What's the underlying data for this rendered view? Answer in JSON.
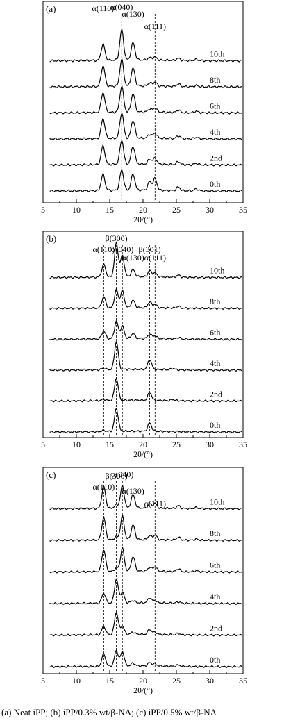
{
  "caption": "(a)   Neat   iPP; (b) iPP/0.3% wt/β-NA; (c) iPP/0.5% wt/β-NA",
  "chart_data": [
    {
      "type": "line",
      "panel_label": "(a)",
      "xlabel": "2θ/(°)",
      "xlim": [
        5,
        35
      ],
      "x_ticks": [
        5,
        10,
        15,
        20,
        25,
        30,
        35
      ],
      "series": [
        {
          "name": "0th",
          "peaks": [
            [
              14.0,
              0.52
            ],
            [
              16.8,
              0.66
            ],
            [
              18.5,
              0.52
            ],
            [
              21.0,
              0.28
            ],
            [
              21.8,
              0.38
            ],
            [
              25.3,
              0.12
            ],
            [
              28.0,
              0.07
            ]
          ]
        },
        {
          "name": "2nd",
          "peaks": [
            [
              14.0,
              0.6
            ],
            [
              16.8,
              0.78
            ],
            [
              18.5,
              0.58
            ],
            [
              21.0,
              0.16
            ],
            [
              21.8,
              0.2
            ],
            [
              25.3,
              0.1
            ],
            [
              28.0,
              0.05
            ]
          ]
        },
        {
          "name": "4th",
          "peaks": [
            [
              14.0,
              0.64
            ],
            [
              16.8,
              0.82
            ],
            [
              18.5,
              0.58
            ],
            [
              21.0,
              0.12
            ],
            [
              21.8,
              0.16
            ],
            [
              25.3,
              0.09
            ],
            [
              28.0,
              0.05
            ]
          ]
        },
        {
          "name": "6th",
          "peaks": [
            [
              14.0,
              0.64
            ],
            [
              16.8,
              0.84
            ],
            [
              18.5,
              0.6
            ],
            [
              21.0,
              0.1
            ],
            [
              21.8,
              0.14
            ],
            [
              25.3,
              0.08
            ],
            [
              28.0,
              0.05
            ]
          ]
        },
        {
          "name": "8th",
          "peaks": [
            [
              14.0,
              0.66
            ],
            [
              16.8,
              0.86
            ],
            [
              18.5,
              0.58
            ],
            [
              21.0,
              0.1
            ],
            [
              21.8,
              0.13
            ],
            [
              25.3,
              0.08
            ],
            [
              28.0,
              0.04
            ]
          ]
        },
        {
          "name": "10th",
          "peaks": [
            [
              14.0,
              0.52
            ],
            [
              16.8,
              0.98
            ],
            [
              18.5,
              0.56
            ],
            [
              21.0,
              0.08
            ],
            [
              21.8,
              0.1
            ],
            [
              25.3,
              0.07
            ],
            [
              28.0,
              0.04
            ]
          ]
        }
      ],
      "reference_lines": [
        {
          "label": "α(110)",
          "x": 14.0
        },
        {
          "label": "α(040)",
          "x": 16.8
        },
        {
          "label": "α(130)",
          "x": 18.5
        },
        {
          "label": "α(111)",
          "x": 21.8
        }
      ]
    },
    {
      "type": "line",
      "panel_label": "(b)",
      "xlabel": "2θ/(°)",
      "xlim": [
        5,
        35
      ],
      "x_ticks": [
        5,
        10,
        15,
        20,
        25,
        30,
        35
      ],
      "series": [
        {
          "name": "0th",
          "peaks": [
            [
              16.0,
              0.82
            ],
            [
              21.0,
              0.3
            ],
            [
              14.1,
              0.04
            ]
          ]
        },
        {
          "name": "2nd",
          "peaks": [
            [
              16.0,
              0.8
            ],
            [
              21.0,
              0.28
            ],
            [
              14.1,
              0.05
            ],
            [
              24.5,
              0.04
            ]
          ]
        },
        {
          "name": "4th",
          "peaks": [
            [
              16.0,
              1.0
            ],
            [
              21.0,
              0.36
            ],
            [
              14.1,
              0.06
            ],
            [
              24.5,
              0.05
            ]
          ]
        },
        {
          "name": "6th",
          "peaks": [
            [
              14.1,
              0.28
            ],
            [
              16.0,
              0.62
            ],
            [
              16.9,
              0.44
            ],
            [
              18.5,
              0.18
            ],
            [
              21.0,
              0.16
            ],
            [
              21.8,
              0.1
            ],
            [
              25.3,
              0.05
            ]
          ]
        },
        {
          "name": "8th",
          "peaks": [
            [
              14.1,
              0.4
            ],
            [
              16.0,
              0.64
            ],
            [
              16.9,
              0.6
            ],
            [
              18.5,
              0.26
            ],
            [
              21.0,
              0.2
            ],
            [
              21.8,
              0.12
            ],
            [
              25.3,
              0.06
            ]
          ]
        },
        {
          "name": "10th",
          "peaks": [
            [
              14.1,
              0.46
            ],
            [
              16.0,
              1.2
            ],
            [
              16.9,
              0.76
            ],
            [
              18.5,
              0.26
            ],
            [
              21.0,
              0.22
            ],
            [
              21.8,
              0.14
            ],
            [
              25.3,
              0.07
            ]
          ]
        }
      ],
      "reference_lines": [
        {
          "label": "α(110)",
          "x": 14.1
        },
        {
          "label": "β(300)",
          "x": 16.0
        },
        {
          "label": "α(040)",
          "x": 16.9
        },
        {
          "label": "α(130)",
          "x": 18.5
        },
        {
          "label": "β(301)",
          "x": 21.0
        },
        {
          "label": "α(111)",
          "x": 21.8
        }
      ]
    },
    {
      "type": "line",
      "panel_label": "(c)",
      "xlabel": "2θ/(°)",
      "xlim": [
        5,
        35
      ],
      "x_ticks": [
        5,
        10,
        15,
        20,
        25,
        30,
        35
      ],
      "series": [
        {
          "name": "0th",
          "peaks": [
            [
              14.1,
              0.44
            ],
            [
              16.0,
              0.56
            ],
            [
              16.9,
              0.52
            ],
            [
              18.5,
              0.1
            ],
            [
              21.0,
              0.12
            ],
            [
              21.8,
              0.08
            ],
            [
              25.3,
              0.05
            ]
          ]
        },
        {
          "name": "2nd",
          "peaks": [
            [
              14.1,
              0.3
            ],
            [
              16.0,
              0.8
            ],
            [
              16.9,
              0.3
            ],
            [
              18.5,
              0.08
            ],
            [
              21.0,
              0.18
            ],
            [
              21.8,
              0.08
            ],
            [
              25.3,
              0.05
            ]
          ]
        },
        {
          "name": "4th",
          "peaks": [
            [
              14.1,
              0.36
            ],
            [
              16.0,
              0.86
            ],
            [
              16.9,
              0.38
            ],
            [
              18.5,
              0.08
            ],
            [
              21.0,
              0.18
            ],
            [
              21.8,
              0.08
            ],
            [
              25.3,
              0.05
            ]
          ]
        },
        {
          "name": "6th",
          "peaks": [
            [
              14.1,
              0.78
            ],
            [
              16.0,
              0.12
            ],
            [
              16.9,
              0.82
            ],
            [
              18.5,
              0.52
            ],
            [
              21.0,
              0.14
            ],
            [
              21.8,
              0.16
            ],
            [
              25.3,
              0.1
            ],
            [
              28.0,
              0.04
            ]
          ]
        },
        {
          "name": "8th",
          "peaks": [
            [
              14.1,
              0.8
            ],
            [
              16.0,
              0.1
            ],
            [
              16.9,
              0.84
            ],
            [
              18.5,
              0.52
            ],
            [
              21.0,
              0.14
            ],
            [
              21.8,
              0.16
            ],
            [
              25.3,
              0.1
            ],
            [
              28.0,
              0.04
            ]
          ]
        },
        {
          "name": "10th",
          "peaks": [
            [
              14.1,
              0.78
            ],
            [
              16.0,
              0.12
            ],
            [
              16.9,
              0.8
            ],
            [
              18.5,
              0.48
            ],
            [
              21.0,
              0.14
            ],
            [
              21.8,
              0.16
            ],
            [
              25.3,
              0.1
            ],
            [
              28.0,
              0.04
            ]
          ]
        }
      ],
      "reference_lines": [
        {
          "label": "α(110)",
          "x": 14.1
        },
        {
          "label": "β(300)",
          "x": 16.0
        },
        {
          "label": "α(040)",
          "x": 16.9
        },
        {
          "label": "α(130)",
          "x": 18.5
        },
        {
          "label": "α(111)",
          "x": 21.8
        }
      ]
    }
  ]
}
